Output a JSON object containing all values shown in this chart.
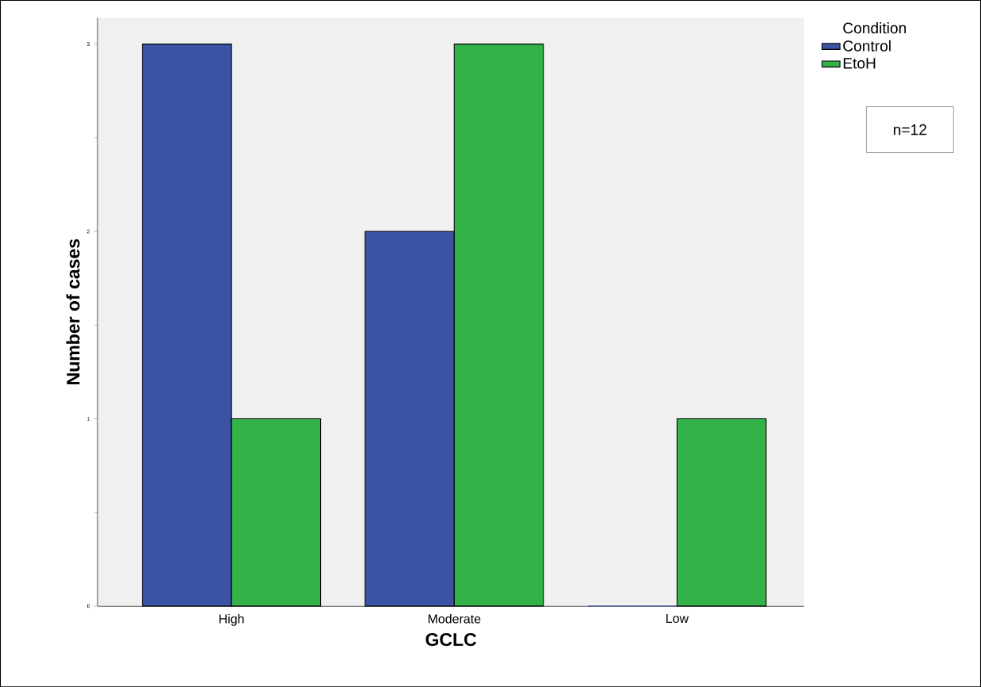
{
  "chart_data": {
    "type": "bar",
    "xlabel": "GCLC",
    "ylabel": "Number of cases",
    "legend_title": "Condition",
    "legend": "top right",
    "annotations": [
      "n=12"
    ],
    "categories": [
      "High",
      "Moderate",
      "Low"
    ],
    "series": [
      {
        "name": "Control",
        "color": "#3a53a5",
        "values": [
          3,
          2,
          0
        ]
      },
      {
        "name": "EtoH",
        "color": "#33b249",
        "values": [
          1,
          3,
          1
        ]
      }
    ],
    "ylim": [
      0,
      3.14
    ],
    "yticks": [
      0,
      1,
      2,
      3
    ]
  }
}
